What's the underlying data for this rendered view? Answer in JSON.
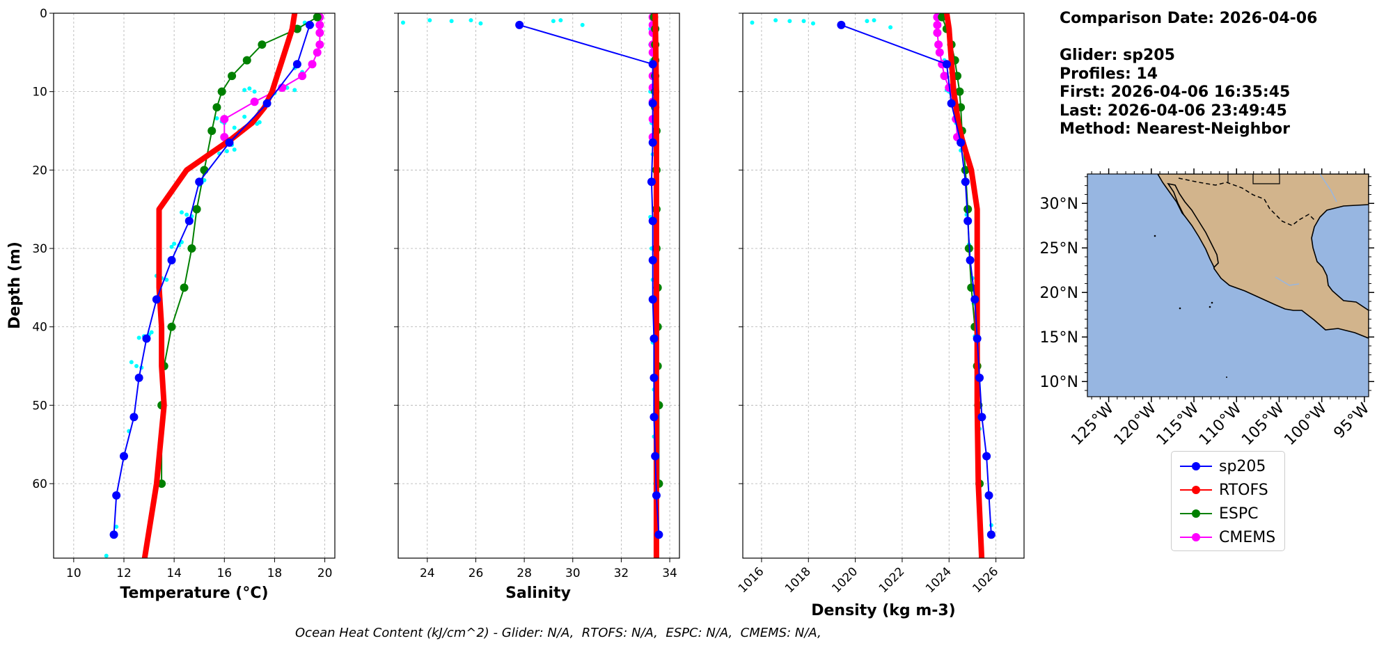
{
  "info": {
    "comparison_date": "Comparison Date: 2026-04-06",
    "glider": "Glider: sp205",
    "profiles": "Profiles: 14",
    "first": "First: 2026-04-06 16:35:45",
    "last": "Last: 2026-04-06 23:49:45",
    "method": "Method: Nearest-Neighbor"
  },
  "footer": "Ocean Heat Content (kJ/cm^2) - Glider: N/A,  RTOFS: N/A,  ESPC: N/A,  CMEMS: N/A,",
  "colors": {
    "glider": "#0000ff",
    "rtofs": "#ff0000",
    "espc": "#008000",
    "cmems": "#ff00ff",
    "raw": "#00ffff",
    "ocean": "#97b6e1",
    "land": "#d2b48c"
  },
  "legend": [
    {
      "name": "sp205",
      "color": "#0000ff"
    },
    {
      "name": "RTOFS",
      "color": "#ff0000"
    },
    {
      "name": "ESPC",
      "color": "#008000"
    },
    {
      "name": "CMEMS",
      "color": "#ff00ff"
    }
  ],
  "chart_data": [
    {
      "type": "line",
      "xlabel": "Temperature (°C)",
      "ylabel": "Depth (m)",
      "xlim": [
        9.2,
        20.4
      ],
      "ylim": [
        69.5,
        0
      ],
      "xticks": [
        10,
        12,
        14,
        16,
        18,
        20
      ],
      "yticks": [
        0,
        10,
        20,
        30,
        40,
        50,
        60
      ],
      "grid": true,
      "series": [
        {
          "name": "sp205",
          "depth": [
            1.5,
            6.5,
            11.5,
            16.5,
            21.5,
            26.5,
            31.5,
            36.5,
            41.5,
            46.5,
            51.5,
            56.5,
            61.5,
            66.5
          ],
          "values": [
            19.4,
            18.9,
            17.7,
            16.2,
            15.0,
            14.6,
            13.9,
            13.3,
            12.9,
            12.6,
            12.4,
            12.0,
            11.7,
            11.6
          ]
        },
        {
          "name": "RTOFS",
          "depth": [
            0,
            2,
            4,
            6,
            8,
            10,
            12,
            14,
            16,
            18,
            20,
            25,
            30,
            35,
            40,
            45,
            50,
            60,
            70
          ],
          "values": [
            18.8,
            18.7,
            18.5,
            18.3,
            18.1,
            17.9,
            17.6,
            17.1,
            16.3,
            15.4,
            14.5,
            13.4,
            13.4,
            13.4,
            13.5,
            13.5,
            13.6,
            13.3,
            12.8
          ]
        },
        {
          "name": "ESPC",
          "depth": [
            0.5,
            2,
            4,
            6,
            8,
            10,
            12,
            15,
            20,
            25,
            30,
            35,
            40,
            45,
            50,
            60
          ],
          "values": [
            19.7,
            18.9,
            17.5,
            16.9,
            16.3,
            15.9,
            15.7,
            15.5,
            15.2,
            14.9,
            14.7,
            14.4,
            13.9,
            13.6,
            13.5,
            13.5
          ]
        },
        {
          "name": "CMEMS",
          "depth": [
            0.5,
            1.5,
            2.5,
            4,
            5,
            6.5,
            8,
            9.5,
            11.3,
            13.5,
            15.8
          ],
          "values": [
            19.8,
            19.8,
            19.8,
            19.8,
            19.7,
            19.5,
            19.1,
            18.3,
            17.2,
            16.0,
            16.0
          ]
        },
        {
          "name": "raw",
          "points": [
            [
              19.2,
              1.2
            ],
            [
              19.5,
              1.5
            ],
            [
              19.0,
              1.8
            ],
            [
              18.8,
              7
            ],
            [
              19.1,
              7.5
            ],
            [
              18.5,
              9.5
            ],
            [
              18.8,
              9.8
            ],
            [
              17.0,
              9.6
            ],
            [
              16.8,
              9.8
            ],
            [
              17.2,
              10.0
            ],
            [
              18.0,
              10.2
            ],
            [
              17.4,
              12.5
            ],
            [
              16.8,
              13.2
            ],
            [
              17.2,
              13.5
            ],
            [
              15.7,
              13.4
            ],
            [
              15.9,
              13.8
            ],
            [
              17.4,
              13.9
            ],
            [
              17.3,
              14.1
            ],
            [
              16.0,
              14.0
            ],
            [
              16.4,
              14.6
            ],
            [
              16.6,
              15.0
            ],
            [
              16.0,
              16.0
            ],
            [
              16.3,
              16.8
            ],
            [
              16.4,
              17.4
            ],
            [
              16.1,
              17.6
            ],
            [
              15.8,
              17.9
            ],
            [
              15.2,
              21.3
            ],
            [
              15.1,
              21.6
            ],
            [
              15.0,
              21.9
            ],
            [
              14.3,
              25.4
            ],
            [
              14.5,
              25.7
            ],
            [
              14.7,
              25.9
            ],
            [
              14.3,
              29.2
            ],
            [
              14.0,
              29.4
            ],
            [
              14.2,
              29.6
            ],
            [
              13.9,
              29.8
            ],
            [
              13.3,
              33.5
            ],
            [
              13.5,
              33.8
            ],
            [
              13.7,
              34.0
            ],
            [
              13.1,
              40.7
            ],
            [
              13.0,
              41.0
            ],
            [
              12.8,
              41.2
            ],
            [
              12.6,
              41.4
            ],
            [
              12.3,
              44.5
            ],
            [
              12.5,
              45.0
            ],
            [
              12.7,
              45.2
            ],
            [
              12.2,
              53.3
            ],
            [
              11.7,
              65.5
            ],
            [
              11.3,
              69.2
            ]
          ]
        }
      ]
    },
    {
      "type": "line",
      "xlabel": "Salinity",
      "xlim": [
        22.8,
        34.4
      ],
      "ylim": [
        69.5,
        0
      ],
      "xticks": [
        24,
        26,
        28,
        30,
        32,
        34
      ],
      "yticks": [
        0,
        10,
        20,
        30,
        40,
        50,
        60
      ],
      "grid": true,
      "series": [
        {
          "name": "sp205",
          "depth": [
            1.5,
            6.5,
            11.5,
            16.5,
            21.5,
            26.5,
            31.5,
            36.5,
            41.5,
            46.5,
            51.5,
            56.5,
            61.5,
            66.5
          ],
          "values": [
            27.8,
            33.3,
            33.3,
            33.3,
            33.25,
            33.3,
            33.3,
            33.3,
            33.35,
            33.35,
            33.35,
            33.4,
            33.45,
            33.55
          ]
        },
        {
          "name": "RTOFS",
          "depth": [
            0,
            10,
            20,
            30,
            40,
            50,
            60,
            70
          ],
          "values": [
            33.4,
            33.45,
            33.45,
            33.45,
            33.45,
            33.45,
            33.45,
            33.45
          ]
        },
        {
          "name": "ESPC",
          "depth": [
            0.5,
            2,
            4,
            6,
            8,
            10,
            12,
            15,
            20,
            25,
            30,
            35,
            40,
            45,
            50,
            60
          ],
          "values": [
            33.35,
            33.4,
            33.4,
            33.4,
            33.4,
            33.4,
            33.4,
            33.45,
            33.45,
            33.45,
            33.45,
            33.5,
            33.5,
            33.5,
            33.55,
            33.55
          ]
        },
        {
          "name": "CMEMS",
          "depth": [
            0.5,
            1.5,
            2.5,
            4,
            5,
            6.5,
            8,
            9.5,
            11.3,
            13.5,
            15.8
          ],
          "values": [
            33.3,
            33.3,
            33.3,
            33.3,
            33.3,
            33.3,
            33.3,
            33.3,
            33.3,
            33.3,
            33.3
          ]
        },
        {
          "name": "raw",
          "points": [
            [
              23.0,
              1.2
            ],
            [
              24.1,
              0.9
            ],
            [
              25.0,
              1.0
            ],
            [
              25.8,
              0.9
            ],
            [
              26.2,
              1.3
            ],
            [
              29.2,
              1.0
            ],
            [
              29.5,
              0.9
            ],
            [
              30.4,
              1.5
            ],
            [
              33.2,
              2.0
            ],
            [
              33.2,
              4.0
            ],
            [
              33.25,
              6.0
            ],
            [
              33.2,
              10.0
            ],
            [
              33.25,
              14.0
            ],
            [
              33.3,
              18.0
            ],
            [
              33.2,
              26.0
            ],
            [
              33.25,
              30.0
            ],
            [
              33.3,
              34.0
            ],
            [
              33.3,
              42.0
            ],
            [
              33.35,
              48.0
            ],
            [
              33.35,
              54.0
            ],
            [
              33.4,
              60.0
            ]
          ]
        }
      ]
    },
    {
      "type": "line",
      "xlabel": "Density (kg m-3)",
      "xlim": [
        1015.2,
        1027.2
      ],
      "ylim": [
        69.5,
        0
      ],
      "xticks": [
        1016,
        1018,
        1020,
        1022,
        1024,
        1026
      ],
      "yticks": [
        0,
        10,
        20,
        30,
        40,
        50,
        60
      ],
      "grid": true,
      "series": [
        {
          "name": "sp205",
          "depth": [
            1.5,
            6.5,
            11.5,
            16.5,
            21.5,
            26.5,
            31.5,
            36.5,
            41.5,
            46.5,
            51.5,
            56.5,
            61.5,
            66.5
          ],
          "values": [
            1019.4,
            1023.9,
            1024.1,
            1024.5,
            1024.7,
            1024.8,
            1024.9,
            1025.1,
            1025.2,
            1025.3,
            1025.4,
            1025.6,
            1025.7,
            1025.8
          ]
        },
        {
          "name": "RTOFS",
          "depth": [
            0,
            2,
            4,
            6,
            8,
            10,
            12,
            14,
            16,
            18,
            20,
            25,
            30,
            35,
            40,
            45,
            50,
            60,
            70
          ],
          "values": [
            1023.9,
            1024.0,
            1024.05,
            1024.1,
            1024.15,
            1024.2,
            1024.3,
            1024.4,
            1024.55,
            1024.75,
            1024.95,
            1025.2,
            1025.2,
            1025.2,
            1025.2,
            1025.2,
            1025.2,
            1025.25,
            1025.4
          ]
        },
        {
          "name": "ESPC",
          "depth": [
            0.5,
            2,
            4,
            6,
            8,
            10,
            12,
            15,
            20,
            25,
            30,
            35,
            40,
            45,
            50,
            60
          ],
          "values": [
            1023.7,
            1023.9,
            1024.1,
            1024.25,
            1024.35,
            1024.45,
            1024.5,
            1024.55,
            1024.7,
            1024.8,
            1024.85,
            1024.95,
            1025.1,
            1025.2,
            1025.25,
            1025.3
          ]
        },
        {
          "name": "CMEMS",
          "depth": [
            0.5,
            1.5,
            2.5,
            4,
            5,
            6.5,
            8,
            9.5,
            11.3,
            13.5,
            15.8
          ],
          "values": [
            1023.5,
            1023.5,
            1023.5,
            1023.55,
            1023.6,
            1023.7,
            1023.8,
            1024.0,
            1024.2,
            1024.3,
            1024.35
          ]
        },
        {
          "name": "raw",
          "points": [
            [
              1015.6,
              1.2
            ],
            [
              1016.6,
              0.9
            ],
            [
              1017.2,
              1.0
            ],
            [
              1017.8,
              1.0
            ],
            [
              1018.2,
              1.3
            ],
            [
              1020.5,
              1.0
            ],
            [
              1020.8,
              0.9
            ],
            [
              1021.5,
              1.8
            ],
            [
              1023.8,
              6.0
            ],
            [
              1023.9,
              9.8
            ],
            [
              1024.0,
              10.0
            ],
            [
              1024.2,
              13.5
            ],
            [
              1024.3,
              14.0
            ],
            [
              1024.5,
              17.5
            ],
            [
              1024.6,
              21.5
            ],
            [
              1024.75,
              25.7
            ],
            [
              1024.85,
              29.5
            ],
            [
              1025.0,
              33.8
            ],
            [
              1025.05,
              37.0
            ],
            [
              1025.1,
              41.2
            ],
            [
              1025.2,
              45.0
            ],
            [
              1025.3,
              53.0
            ],
            [
              1025.8,
              65.3
            ]
          ]
        }
      ]
    },
    {
      "type": "map",
      "lat_range": [
        8.3,
        33.3
      ],
      "lon_range": [
        -127.5,
        -94.5
      ],
      "lat_ticks": [
        "10°N",
        "15°N",
        "20°N",
        "25°N",
        "30°N"
      ],
      "lon_ticks": [
        "125°W",
        "120°W",
        "115°W",
        "110°W",
        "105°W",
        "100°W",
        "95°W"
      ]
    }
  ]
}
